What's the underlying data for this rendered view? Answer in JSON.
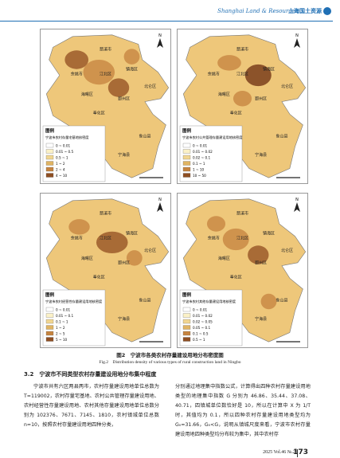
{
  "header": {
    "journal_en": "Shanghai Land & Resources",
    "journal_cn": "上海国土资源"
  },
  "maps": [
    {
      "north": "N",
      "places": [
        "慈溪市",
        "余姚市",
        "江北区",
        "镇海区",
        "北仑区",
        "海曙区",
        "鄞州区",
        "奉化区",
        "象山县",
        "宁海县"
      ],
      "legend_heading": "图例",
      "legend_title": "宁波市农村存量宅基地核密度",
      "legend_items": [
        "0 ~ 0.01",
        "0.01 ~ 0.5",
        "0.5 ~ 1",
        "1 ~ 2",
        "2 ~ 4",
        "4 ~ 10"
      ]
    },
    {
      "north": "N",
      "places": [
        "慈溪市",
        "余姚市",
        "江北区",
        "镇海区",
        "北仑区",
        "海曙区",
        "鄞州区",
        "奉化区",
        "象山县",
        "宁海县"
      ],
      "legend_heading": "图例",
      "legend_title": "宁波市农村公共管理存量建设用地核密度",
      "legend_items": [
        "0 ~ 0.01",
        "0.01 ~ 0.02",
        "0.02 ~ 0.1",
        "0.1 ~ 1",
        "1 ~ 10",
        "10 ~ 50"
      ]
    },
    {
      "north": "N",
      "places": [
        "慈溪市",
        "余姚市",
        "江北区",
        "镇海区",
        "北仑区",
        "海曙区",
        "鄞州区",
        "奉化区",
        "象山县",
        "宁海县"
      ],
      "legend_heading": "图例",
      "legend_title": "宁波市农村经营性存量建设用地核密度",
      "legend_items": [
        "0 ~ 0.01",
        "0.01 ~ 0.1",
        "0.1 ~ 1",
        "1 ~ 2",
        "2 ~ 5",
        "5 ~ 10"
      ]
    },
    {
      "north": "N",
      "places": [
        "慈溪市",
        "余姚市",
        "江北区",
        "镇海区",
        "北仑区",
        "海曙区",
        "鄞州区",
        "奉化区",
        "象山县",
        "宁海县"
      ],
      "legend_heading": "图例",
      "legend_title": "宁波市农村其他存量建设用地核密度",
      "legend_items": [
        "0 ~ 0.01",
        "0.01 ~ 0.02",
        "0.02 ~ 0.05",
        "0.05 ~ 0.1",
        "0.1 ~ 0.5",
        "0.5 ~ 1"
      ]
    }
  ],
  "figure": {
    "caption_cn": "图2　宁波市各类农村存量建设用地分布密度图",
    "caption_en": "Fig.2　Distribution density of various types of rural construction land in Ningbo"
  },
  "section": {
    "heading": "3.2　宁波市不同类型农村存量建设用地分布集中程度",
    "left_text": "宁波市共有六区两县两市，农村存量建设用地单位总数为 T=119002，农村存量宅基地、农村公共管理存量建设用地、农村经营性存量建设用地、农村其他存量建设用地单位总数分别为 102376、7671、7145、1810，农村镇城单位总数 n=10，按照农村存量建设用地四种分类，",
    "right_text": "分别通过地理集中指数公式，计算得出四种农村存量建设用地类型的地理集中指数 G 分别为 46.86、35.44、37.08、40.71，四镇城单位数恰好是 10，所以在计算中 X 为 1/T 时，其值均为 0.1，所以四种农村存量建设用地类型均为 G₀=31.66，G₀<G，说明从镇城尺度来看，宁波市农村存量建设用地四种类型均分布较为集中，其中农村存"
  },
  "footer": {
    "issue": "2025 Vol.46 №.2",
    "page": "173"
  }
}
